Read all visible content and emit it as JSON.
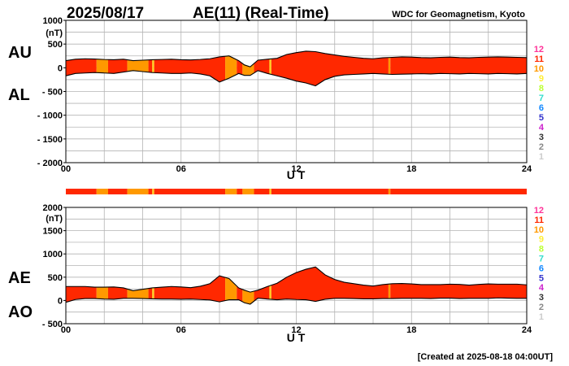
{
  "header": {
    "date": "2025/08/17",
    "title": "AE(11) (Real-Time)",
    "source": "WDC for Geomagnetism, Kyoto"
  },
  "footer": {
    "created": "[Created at 2025-08-18 04:00UT]"
  },
  "colors": {
    "seg_11": "#ff2800",
    "seg_10": "#ff9900",
    "seg_9": "#ffd21e",
    "outline": "#000000",
    "grid": "#b4b4b4"
  },
  "station_legend": [
    {
      "label": "12",
      "color": "#ff3399"
    },
    {
      "label": "11",
      "color": "#ff2800"
    },
    {
      "label": "10",
      "color": "#ff9900"
    },
    {
      "label": "9",
      "color": "#ffee33"
    },
    {
      "label": "8",
      "color": "#bbff33"
    },
    {
      "label": "7",
      "color": "#33ddcc"
    },
    {
      "label": "6",
      "color": "#1188ff"
    },
    {
      "label": "5",
      "color": "#3333cc"
    },
    {
      "label": "4",
      "color": "#cc22cc"
    },
    {
      "label": "3",
      "color": "#333333"
    },
    {
      "label": "2",
      "color": "#888888"
    },
    {
      "label": "1",
      "color": "#cccccc"
    }
  ],
  "chart_data": [
    {
      "type": "area",
      "panel": "top",
      "left_labels": [
        "AU",
        "AL"
      ],
      "xlabel": "U T",
      "ylabel": "(nT)",
      "xlim": [
        0,
        24
      ],
      "ylim": [
        -2000,
        1000
      ],
      "xticks": [
        0,
        6,
        12,
        18,
        24
      ],
      "xtick_labels": [
        "00",
        "06",
        "12",
        "18",
        "24"
      ],
      "yticks": [
        1000,
        500,
        0,
        -500,
        -1000,
        -1500,
        -2000
      ],
      "ytick_labels": [
        "1000",
        "500",
        "0",
        "- 500",
        "- 1000",
        "- 1500",
        "- 2000"
      ],
      "grid": true,
      "series": [
        {
          "name": "AU",
          "x": [
            0,
            0.5,
            1,
            1.5,
            2,
            2.5,
            3,
            3.5,
            4,
            4.5,
            5,
            5.5,
            6,
            6.5,
            7,
            7.5,
            8,
            8.5,
            9,
            9.3,
            9.6,
            10,
            10.5,
            11,
            11.5,
            12,
            12.5,
            13,
            13.5,
            14,
            14.5,
            15,
            15.5,
            16,
            16.5,
            17,
            17.5,
            18,
            18.5,
            19,
            19.5,
            20,
            20.5,
            21,
            21.5,
            22,
            22.5,
            23,
            23.5,
            24
          ],
          "values": [
            150,
            180,
            190,
            185,
            175,
            170,
            180,
            150,
            160,
            170,
            175,
            180,
            170,
            165,
            175,
            190,
            230,
            250,
            150,
            60,
            20,
            160,
            180,
            200,
            280,
            320,
            350,
            340,
            300,
            270,
            240,
            220,
            200,
            190,
            210,
            220,
            230,
            225,
            215,
            210,
            220,
            225,
            215,
            210,
            220,
            225,
            230,
            225,
            220,
            215
          ]
        },
        {
          "name": "AL",
          "x": [
            0,
            0.5,
            1,
            1.5,
            2,
            2.5,
            3,
            3.5,
            4,
            4.5,
            5,
            5.5,
            6,
            6.5,
            7,
            7.5,
            8,
            8.5,
            9,
            9.3,
            9.6,
            10,
            10.5,
            11,
            11.5,
            12,
            12.5,
            13,
            13.5,
            14,
            14.5,
            15,
            15.5,
            16,
            16.5,
            17,
            17.5,
            18,
            18.5,
            19,
            19.5,
            20,
            20.5,
            21,
            21.5,
            22,
            22.5,
            23,
            23.5,
            24
          ],
          "values": [
            -170,
            -120,
            -110,
            -100,
            -110,
            -120,
            -90,
            -60,
            -80,
            -100,
            -110,
            -120,
            -120,
            -110,
            -130,
            -170,
            -300,
            -220,
            -120,
            -160,
            -160,
            -60,
            -120,
            -170,
            -220,
            -280,
            -320,
            -380,
            -250,
            -180,
            -150,
            -140,
            -130,
            -120,
            -130,
            -140,
            -135,
            -130,
            -125,
            -130,
            -120,
            -125,
            -130,
            -120,
            -125,
            -130,
            -120,
            -125,
            -130,
            -120
          ]
        }
      ],
      "station_segments": [
        {
          "start": 0,
          "end": 1.6,
          "stations": 11
        },
        {
          "start": 1.6,
          "end": 2.2,
          "stations": 10
        },
        {
          "start": 2.2,
          "end": 3.2,
          "stations": 11
        },
        {
          "start": 3.2,
          "end": 4.3,
          "stations": 10
        },
        {
          "start": 4.3,
          "end": 4.5,
          "stations": 11
        },
        {
          "start": 4.5,
          "end": 4.6,
          "stations": 9
        },
        {
          "start": 4.6,
          "end": 8.3,
          "stations": 11
        },
        {
          "start": 8.3,
          "end": 8.9,
          "stations": 10
        },
        {
          "start": 8.9,
          "end": 9.2,
          "stations": 11
        },
        {
          "start": 9.2,
          "end": 9.8,
          "stations": 10
        },
        {
          "start": 9.8,
          "end": 10.6,
          "stations": 11
        },
        {
          "start": 10.6,
          "end": 10.7,
          "stations": 9
        },
        {
          "start": 10.7,
          "end": 16.8,
          "stations": 11
        },
        {
          "start": 16.8,
          "end": 16.9,
          "stations": 10
        },
        {
          "start": 16.9,
          "end": 24,
          "stations": 11
        }
      ]
    },
    {
      "type": "area",
      "panel": "bottom",
      "left_labels": [
        "AE",
        "AO"
      ],
      "xlabel": "U T",
      "ylabel": "(nT)",
      "xlim": [
        0,
        24
      ],
      "ylim": [
        -500,
        2000
      ],
      "xticks": [
        0,
        6,
        12,
        18,
        24
      ],
      "xtick_labels": [
        "00",
        "06",
        "12",
        "18",
        "24"
      ],
      "yticks": [
        2000,
        1500,
        1000,
        500,
        0,
        -500
      ],
      "ytick_labels": [
        "2000",
        "1500",
        "1000",
        "500",
        "0",
        "- 500"
      ],
      "grid": true,
      "series": [
        {
          "name": "AE",
          "x": [
            0,
            0.5,
            1,
            1.5,
            2,
            2.5,
            3,
            3.5,
            4,
            4.5,
            5,
            5.5,
            6,
            6.5,
            7,
            7.5,
            8,
            8.5,
            9,
            9.3,
            9.6,
            10,
            10.5,
            11,
            11.5,
            12,
            12.5,
            13,
            13.5,
            14,
            14.5,
            15,
            15.5,
            16,
            16.5,
            17,
            17.5,
            18,
            18.5,
            19,
            19.5,
            20,
            20.5,
            21,
            21.5,
            22,
            22.5,
            23,
            23.5,
            24
          ],
          "values": [
            300,
            300,
            300,
            285,
            285,
            290,
            270,
            210,
            240,
            270,
            285,
            300,
            290,
            275,
            305,
            360,
            530,
            470,
            270,
            220,
            180,
            220,
            300,
            370,
            500,
            600,
            670,
            720,
            550,
            450,
            390,
            360,
            330,
            310,
            340,
            360,
            365,
            355,
            340,
            340,
            340,
            350,
            345,
            330,
            345,
            355,
            350,
            350,
            350,
            335
          ]
        },
        {
          "name": "AO",
          "x": [
            0,
            0.5,
            1,
            1.5,
            2,
            2.5,
            3,
            3.5,
            4,
            4.5,
            5,
            5.5,
            6,
            6.5,
            7,
            7.5,
            8,
            8.5,
            9,
            9.3,
            9.6,
            10,
            10.5,
            11,
            11.5,
            12,
            12.5,
            13,
            13.5,
            14,
            14.5,
            15,
            15.5,
            16,
            16.5,
            17,
            17.5,
            18,
            18.5,
            19,
            19.5,
            20,
            20.5,
            21,
            21.5,
            22,
            22.5,
            23,
            23.5,
            24
          ],
          "values": [
            -40,
            20,
            40,
            40,
            30,
            25,
            45,
            45,
            40,
            35,
            30,
            30,
            25,
            30,
            20,
            10,
            -30,
            15,
            15,
            -50,
            -80,
            50,
            30,
            15,
            30,
            20,
            15,
            -20,
            25,
            45,
            45,
            40,
            35,
            35,
            40,
            40,
            45,
            45,
            45,
            40,
            50,
            50,
            40,
            45,
            45,
            45,
            55,
            50,
            45,
            45
          ]
        }
      ],
      "station_segments": [
        {
          "start": 0,
          "end": 1.6,
          "stations": 11
        },
        {
          "start": 1.6,
          "end": 2.2,
          "stations": 10
        },
        {
          "start": 2.2,
          "end": 3.2,
          "stations": 11
        },
        {
          "start": 3.2,
          "end": 4.3,
          "stations": 10
        },
        {
          "start": 4.3,
          "end": 4.5,
          "stations": 11
        },
        {
          "start": 4.5,
          "end": 4.6,
          "stations": 9
        },
        {
          "start": 4.6,
          "end": 8.3,
          "stations": 11
        },
        {
          "start": 8.3,
          "end": 8.9,
          "stations": 10
        },
        {
          "start": 8.9,
          "end": 9.2,
          "stations": 11
        },
        {
          "start": 9.2,
          "end": 9.8,
          "stations": 10
        },
        {
          "start": 9.8,
          "end": 10.6,
          "stations": 11
        },
        {
          "start": 10.6,
          "end": 10.7,
          "stations": 9
        },
        {
          "start": 10.7,
          "end": 16.8,
          "stations": 11
        },
        {
          "start": 16.8,
          "end": 16.9,
          "stations": 10
        },
        {
          "start": 16.9,
          "end": 24,
          "stations": 11
        }
      ]
    }
  ]
}
